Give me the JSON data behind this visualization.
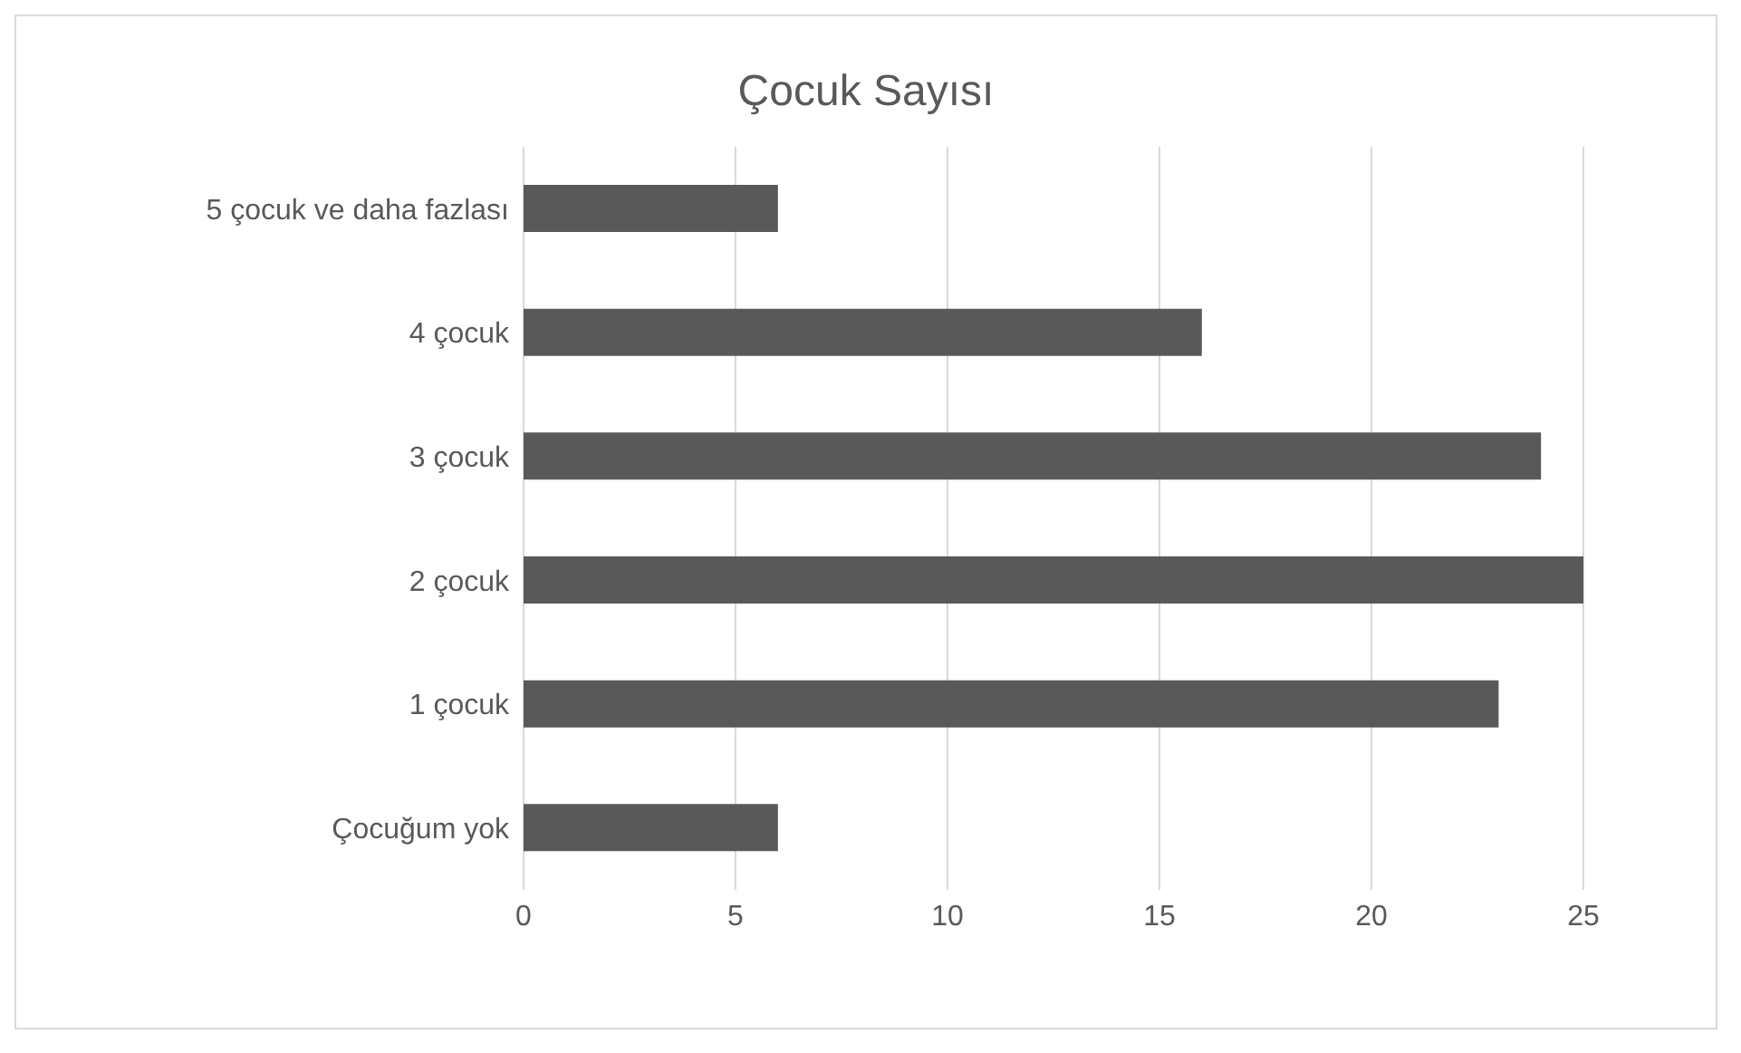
{
  "chart_data": {
    "type": "bar",
    "orientation": "horizontal",
    "title": "Çocuk Sayısı",
    "categories": [
      "5 çocuk ve daha fazlası",
      "4 çocuk",
      "3 çocuk",
      "2 çocuk",
      "1 çocuk",
      "Çocuğum yok"
    ],
    "values": [
      6,
      16,
      24,
      25,
      23,
      6
    ],
    "color": "#595959",
    "xlim": [
      0,
      25
    ],
    "xticks": [
      0,
      5,
      10,
      15,
      20,
      25
    ],
    "grid": "x"
  }
}
